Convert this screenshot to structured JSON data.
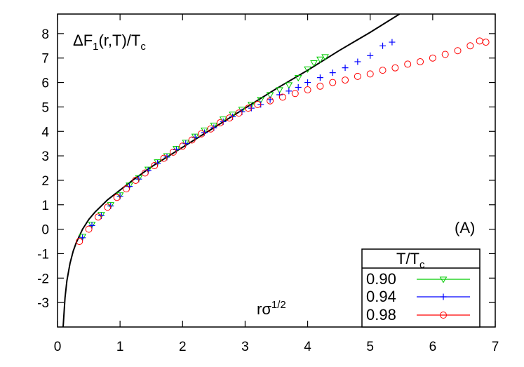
{
  "chart_data": {
    "type": "scatter",
    "title": "",
    "ylabel_text": "ΔF",
    "ylabel_sub": "1",
    "ylabel_rest": "(r,T)/T",
    "ylabel_sub2": "c",
    "xlabel_text": "rσ",
    "xlabel_sup": "1/2",
    "panel_label": "(A)",
    "xlim": [
      0,
      7
    ],
    "ylim": [
      -4,
      8.8
    ],
    "xticks": [
      "0",
      "1",
      "2",
      "3",
      "4",
      "5",
      "6",
      "7"
    ],
    "yticks": [
      "-3",
      "-2",
      "-1",
      "0",
      "1",
      "2",
      "3",
      "4",
      "5",
      "6",
      "7",
      "8"
    ],
    "grid": false,
    "legend": {
      "title": "T/T",
      "title_sub": "c",
      "placement": "bottom-right",
      "entries": [
        "0.90",
        "0.94",
        "0.98"
      ]
    },
    "series": [
      {
        "name": "0.90",
        "color": "#00cc00",
        "marker": "triangle-down",
        "points": [
          [
            0.4,
            -0.3
          ],
          [
            0.55,
            0.2
          ],
          [
            0.7,
            0.6
          ],
          [
            0.85,
            1.0
          ],
          [
            1.0,
            1.4
          ],
          [
            1.15,
            1.8
          ],
          [
            1.3,
            2.1
          ],
          [
            1.45,
            2.45
          ],
          [
            1.6,
            2.75
          ],
          [
            1.75,
            3.0
          ],
          [
            1.9,
            3.3
          ],
          [
            2.05,
            3.55
          ],
          [
            2.2,
            3.8
          ],
          [
            2.35,
            4.05
          ],
          [
            2.5,
            4.25
          ],
          [
            2.65,
            4.5
          ],
          [
            2.8,
            4.7
          ],
          [
            2.95,
            4.9
          ],
          [
            3.1,
            5.1
          ],
          [
            3.25,
            5.3
          ],
          [
            3.4,
            5.5
          ],
          [
            3.55,
            5.7
          ],
          [
            3.7,
            5.9
          ],
          [
            3.85,
            6.2
          ],
          [
            4.0,
            6.55
          ],
          [
            4.1,
            6.8
          ],
          [
            4.2,
            6.95
          ],
          [
            4.28,
            7.05
          ]
        ]
      },
      {
        "name": "0.94",
        "color": "#0000ff",
        "marker": "plus",
        "points": [
          [
            0.4,
            -0.35
          ],
          [
            0.55,
            0.15
          ],
          [
            0.7,
            0.55
          ],
          [
            0.85,
            0.95
          ],
          [
            1.0,
            1.35
          ],
          [
            1.15,
            1.75
          ],
          [
            1.3,
            2.05
          ],
          [
            1.45,
            2.4
          ],
          [
            1.6,
            2.7
          ],
          [
            1.75,
            2.95
          ],
          [
            1.9,
            3.25
          ],
          [
            2.05,
            3.5
          ],
          [
            2.2,
            3.75
          ],
          [
            2.35,
            3.95
          ],
          [
            2.5,
            4.15
          ],
          [
            2.65,
            4.4
          ],
          [
            2.8,
            4.6
          ],
          [
            2.95,
            4.8
          ],
          [
            3.1,
            4.95
          ],
          [
            3.25,
            5.1
          ],
          [
            3.4,
            5.3
          ],
          [
            3.55,
            5.5
          ],
          [
            3.7,
            5.65
          ],
          [
            3.85,
            5.8
          ],
          [
            4.0,
            6.0
          ],
          [
            4.2,
            6.2
          ],
          [
            4.4,
            6.4
          ],
          [
            4.6,
            6.6
          ],
          [
            4.8,
            6.85
          ],
          [
            5.0,
            7.1
          ],
          [
            5.2,
            7.5
          ],
          [
            5.35,
            7.65
          ]
        ]
      },
      {
        "name": "0.98",
        "color": "#ff0000",
        "marker": "circle",
        "points": [
          [
            0.35,
            -0.5
          ],
          [
            0.5,
            0.0
          ],
          [
            0.65,
            0.5
          ],
          [
            0.8,
            0.9
          ],
          [
            0.95,
            1.3
          ],
          [
            1.1,
            1.65
          ],
          [
            1.25,
            2.0
          ],
          [
            1.4,
            2.3
          ],
          [
            1.55,
            2.6
          ],
          [
            1.7,
            2.9
          ],
          [
            1.85,
            3.15
          ],
          [
            2.0,
            3.4
          ],
          [
            2.15,
            3.65
          ],
          [
            2.3,
            3.9
          ],
          [
            2.45,
            4.1
          ],
          [
            2.6,
            4.35
          ],
          [
            2.75,
            4.55
          ],
          [
            2.9,
            4.75
          ],
          [
            3.05,
            4.95
          ],
          [
            3.2,
            5.1
          ],
          [
            3.4,
            5.25
          ],
          [
            3.6,
            5.4
          ],
          [
            3.8,
            5.55
          ],
          [
            4.0,
            5.7
          ],
          [
            4.2,
            5.85
          ],
          [
            4.4,
            6.0
          ],
          [
            4.6,
            6.1
          ],
          [
            4.8,
            6.25
          ],
          [
            5.0,
            6.35
          ],
          [
            5.2,
            6.5
          ],
          [
            5.4,
            6.6
          ],
          [
            5.6,
            6.75
          ],
          [
            5.8,
            6.85
          ],
          [
            6.0,
            7.0
          ],
          [
            6.2,
            7.15
          ],
          [
            6.4,
            7.3
          ],
          [
            6.6,
            7.5
          ],
          [
            6.75,
            7.7
          ],
          [
            6.85,
            7.65
          ]
        ]
      }
    ],
    "reference_curve": {
      "color": "#000000",
      "points": [
        [
          0.09,
          -4.0
        ],
        [
          0.12,
          -2.8
        ],
        [
          0.15,
          -2.1
        ],
        [
          0.2,
          -1.4
        ],
        [
          0.25,
          -0.9
        ],
        [
          0.3,
          -0.55
        ],
        [
          0.4,
          0.0
        ],
        [
          0.5,
          0.4
        ],
        [
          0.6,
          0.7
        ],
        [
          0.7,
          0.95
        ],
        [
          0.8,
          1.2
        ],
        [
          1.0,
          1.6
        ],
        [
          1.2,
          2.0
        ],
        [
          1.5,
          2.55
        ],
        [
          2.0,
          3.35
        ],
        [
          2.5,
          4.15
        ],
        [
          3.0,
          4.95
        ],
        [
          3.5,
          5.75
        ],
        [
          4.0,
          6.5
        ],
        [
          4.5,
          7.3
        ],
        [
          5.0,
          8.05
        ],
        [
          5.47,
          8.8
        ]
      ]
    }
  }
}
